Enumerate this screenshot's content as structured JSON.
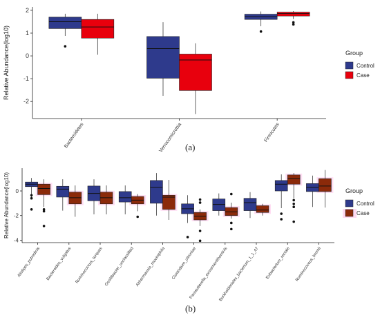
{
  "captions": {
    "a": "(a)",
    "b": "(b)"
  },
  "colors": {
    "control_fill": "#2e3a8c",
    "case_fill_a": "#e8000d",
    "case_fill_b": "#8b2a0a",
    "b_highlight": "#ffd6f0",
    "whisker": "#3a3a3a",
    "axis": "#222222"
  },
  "chart_data": [
    {
      "type": "box",
      "panel": "a",
      "ylabel": "Relative Abundance(log10)",
      "xlabel": "",
      "ylim": [
        -2.75,
        2.15
      ],
      "yticks": [
        -2,
        -1,
        0,
        1,
        2
      ],
      "categories": [
        "Bacteroidetes",
        "Verrucomicrobia",
        "Firmicutes"
      ],
      "legend": {
        "title": "Group",
        "position": "right",
        "entries": [
          "Control",
          "Case"
        ]
      },
      "series": [
        {
          "name": "Control",
          "boxes": [
            {
              "min": 0.88,
              "q1": 1.2,
              "median": 1.5,
              "q3": 1.7,
              "max": 1.85,
              "outliers": [
                0.42
              ]
            },
            {
              "min": -1.75,
              "q1": -0.98,
              "median": 0.32,
              "q3": 0.85,
              "max": 1.48,
              "outliers": []
            },
            {
              "min": 1.3,
              "q1": 1.6,
              "median": 1.72,
              "q3": 1.83,
              "max": 1.95,
              "outliers": [
                1.07
              ]
            }
          ]
        },
        {
          "name": "Case",
          "boxes": [
            {
              "min": 0.05,
              "q1": 0.78,
              "median": 1.27,
              "q3": 1.6,
              "max": 1.85,
              "outliers": []
            },
            {
              "min": -2.55,
              "q1": -1.52,
              "median": -0.18,
              "q3": 0.08,
              "max": 0.55,
              "outliers": []
            },
            {
              "min": 1.62,
              "q1": 1.75,
              "median": 1.86,
              "q3": 1.92,
              "max": 1.97,
              "outliers": [
                1.47,
                1.38
              ]
            }
          ]
        }
      ]
    },
    {
      "type": "box",
      "panel": "b",
      "ylabel": "Relative Abundance(log10)",
      "xlabel": "",
      "ylim": [
        -4.2,
        1.85
      ],
      "yticks": [
        -4,
        -2,
        0
      ],
      "categories": [
        "Alistipes_putredinis",
        "Bacteroides_vulgatus",
        "Ruminococcus_torques",
        "Oscillibacter_unclassified",
        "Akkermansia_muciniphila",
        "Clostridium_citroniae",
        "Parasutterella_excrementihominis",
        "Burkholderiales_bacterium_1_1_47",
        "Eubacterium_rectale",
        "Ruminococcus_bromii"
      ],
      "legend": {
        "title": "Group",
        "position": "right",
        "entries": [
          "Control",
          "Case"
        ]
      },
      "series": [
        {
          "name": "Control",
          "boxes": [
            {
              "min": -0.55,
              "q1": 0.35,
              "median": 0.55,
              "q3": 0.72,
              "max": 1.05,
              "outliers": [
                -0.35,
                -0.6,
                -1.5
              ]
            },
            {
              "min": -1.6,
              "q1": -0.5,
              "median": 0.15,
              "q3": 0.38,
              "max": 0.95,
              "outliers": []
            },
            {
              "min": -1.9,
              "q1": -0.8,
              "median": -0.2,
              "q3": 0.4,
              "max": 0.95,
              "outliers": []
            },
            {
              "min": -1.9,
              "q1": -0.9,
              "median": -0.55,
              "q3": -0.05,
              "max": 0.45,
              "outliers": []
            },
            {
              "min": -2.0,
              "q1": -1.0,
              "median": 0.3,
              "q3": 0.85,
              "max": 1.45,
              "outliers": []
            },
            {
              "min": -2.6,
              "q1": -1.85,
              "median": -1.45,
              "q3": -1.05,
              "max": -0.35,
              "outliers": [
                -3.75
              ]
            },
            {
              "min": -2.0,
              "q1": -1.6,
              "median": -1.1,
              "q3": -0.65,
              "max": -0.2,
              "outliers": []
            },
            {
              "min": -2.2,
              "q1": -1.6,
              "median": -0.95,
              "q3": -0.6,
              "max": -0.1,
              "outliers": []
            },
            {
              "min": -1.4,
              "q1": 0.0,
              "median": 0.55,
              "q3": 0.85,
              "max": 1.35,
              "outliers": [
                -1.85,
                -2.3
              ]
            },
            {
              "min": -1.3,
              "q1": -0.05,
              "median": 0.3,
              "q3": 0.6,
              "max": 1.25,
              "outliers": []
            }
          ]
        },
        {
          "name": "Case",
          "boxes": [
            {
              "min": -1.3,
              "q1": -0.3,
              "median": 0.2,
              "q3": 0.55,
              "max": 0.95,
              "outliers": [
                -1.5,
                -1.65,
                -2.85
              ]
            },
            {
              "min": -2.1,
              "q1": -1.05,
              "median": -0.55,
              "q3": -0.1,
              "max": 0.45,
              "outliers": []
            },
            {
              "min": -1.9,
              "q1": -1.05,
              "median": -0.55,
              "q3": -0.1,
              "max": 0.45,
              "outliers": []
            },
            {
              "min": -1.65,
              "q1": -1.05,
              "median": -0.75,
              "q3": -0.45,
              "max": -0.25,
              "outliers": [
                -2.1
              ]
            },
            {
              "min": -2.35,
              "q1": -1.5,
              "median": -0.5,
              "q3": -0.35,
              "max": 0.9,
              "outliers": []
            },
            {
              "min": -2.85,
              "q1": -2.35,
              "median": -2.05,
              "q3": -1.75,
              "max": -1.5,
              "outliers": [
                -0.7,
                -0.95,
                -3.25,
                -4.05
              ]
            },
            {
              "min": -2.25,
              "q1": -2.0,
              "median": -1.7,
              "q3": -1.35,
              "max": -0.95,
              "outliers": [
                -0.25,
                -2.6,
                -3.1
              ]
            },
            {
              "min": -2.0,
              "q1": -1.75,
              "median": -1.55,
              "q3": -1.2,
              "max": -1.05,
              "outliers": []
            },
            {
              "min": -0.6,
              "q1": 0.55,
              "median": 1.0,
              "q3": 1.3,
              "max": 1.45,
              "outliers": [
                -0.75,
                -1.05,
                -1.3,
                -2.5
              ]
            },
            {
              "min": -1.35,
              "q1": -0.05,
              "median": 0.4,
              "q3": 1.0,
              "max": 1.7,
              "outliers": []
            }
          ]
        }
      ]
    }
  ]
}
